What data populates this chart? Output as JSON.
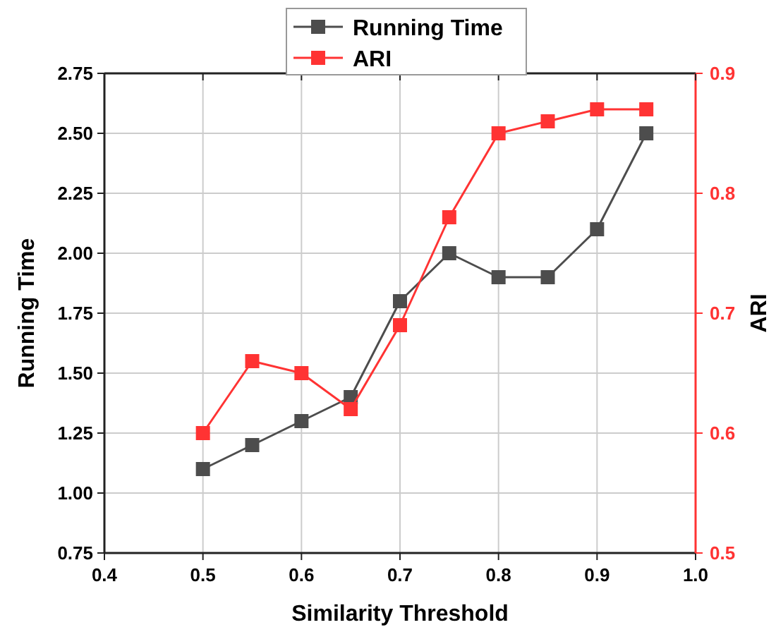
{
  "chart_data": {
    "type": "line",
    "xlabel": "Similarity Threshold",
    "ylabel": "Running Time",
    "y2label": "ARI",
    "x": [
      0.5,
      0.55,
      0.6,
      0.65,
      0.7,
      0.75,
      0.8,
      0.85,
      0.9,
      0.95
    ],
    "series": [
      {
        "name": "Running Time",
        "color": "#4d4d4d",
        "values": [
          1.1,
          1.2,
          1.3,
          1.4,
          1.8,
          2.0,
          1.9,
          1.9,
          2.1,
          2.5
        ]
      },
      {
        "name": "ARI",
        "color": "#ff3333",
        "axis": "y2",
        "values": [
          0.6,
          0.66,
          0.65,
          0.62,
          0.69,
          0.78,
          0.85,
          0.86,
          0.87,
          0.87
        ]
      }
    ],
    "xlim": [
      0.4,
      1.0
    ],
    "xticks": [
      0.4,
      0.5,
      0.6,
      0.7,
      0.8,
      0.9,
      {
        "value": 1,
        "label": "1.0"
      }
    ],
    "ylim": [
      0.75,
      2.75
    ],
    "yticks": [
      0.75,
      {
        "value": 1,
        "label": "1.00"
      },
      1.25,
      {
        "value": 1.5,
        "label": "1.50"
      },
      1.75,
      {
        "value": 2,
        "label": "2.00"
      },
      2.25,
      {
        "value": 2.5,
        "label": "2.50"
      },
      2.75
    ],
    "y2lim": [
      0.5,
      0.9
    ],
    "y2ticks": [
      0.5,
      0.6,
      0.7,
      0.8,
      0.9
    ],
    "grid": true,
    "legend": "top",
    "marker": "square",
    "line_style": "solid"
  }
}
